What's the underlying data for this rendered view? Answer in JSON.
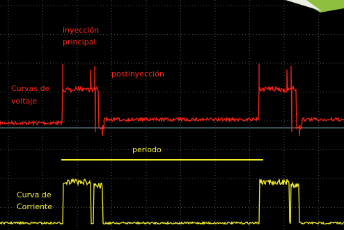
{
  "annotations": {
    "main_injection": [
      "inyección",
      "principal"
    ],
    "post_injection": "postinyección",
    "voltage_curves": [
      "Curvas de",
      "voltaje"
    ],
    "period": "periodo",
    "current_curve": [
      "Curva de",
      "Corriente"
    ]
  }
}
